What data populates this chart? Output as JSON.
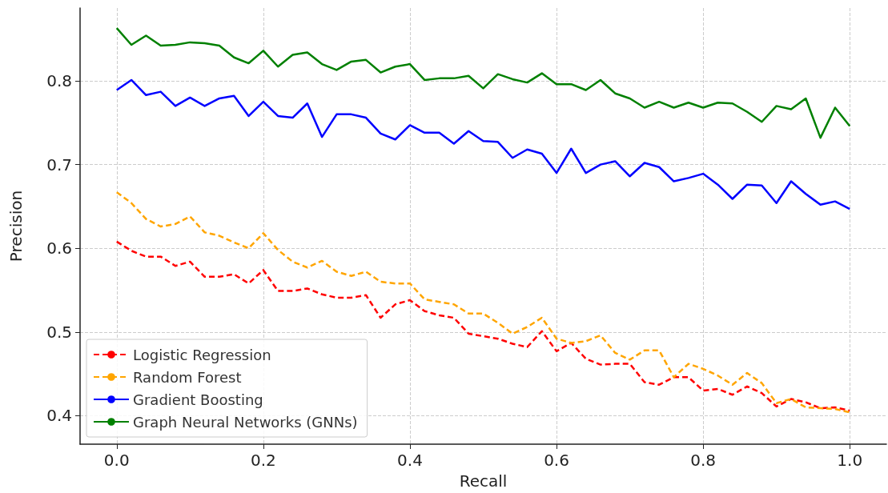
{
  "chart_data": {
    "type": "line",
    "xlabel": "Recall",
    "ylabel": "Precision",
    "x": [
      0,
      0.02,
      0.04,
      0.06,
      0.08,
      0.1,
      0.12,
      0.14,
      0.16,
      0.18,
      0.2,
      0.22,
      0.24,
      0.26,
      0.28,
      0.3,
      0.32,
      0.34,
      0.36,
      0.38,
      0.4,
      0.42,
      0.44,
      0.46,
      0.48,
      0.5,
      0.52,
      0.54,
      0.56,
      0.58,
      0.6,
      0.62,
      0.64,
      0.66,
      0.68,
      0.7,
      0.72,
      0.74,
      0.76,
      0.78,
      0.8,
      0.82,
      0.84,
      0.86,
      0.88,
      0.9,
      0.92,
      0.94,
      0.96,
      0.98,
      1.0
    ],
    "series": [
      {
        "name": "Logistic Regression",
        "color": "#ff0000",
        "line_style": "dashed",
        "values": [
          0.608,
          0.597,
          0.59,
          0.59,
          0.579,
          0.584,
          0.566,
          0.566,
          0.569,
          0.558,
          0.574,
          0.549,
          0.549,
          0.552,
          0.545,
          0.541,
          0.541,
          0.544,
          0.517,
          0.533,
          0.538,
          0.525,
          0.52,
          0.517,
          0.498,
          0.495,
          0.492,
          0.486,
          0.482,
          0.501,
          0.477,
          0.487,
          0.468,
          0.461,
          0.462,
          0.462,
          0.44,
          0.437,
          0.446,
          0.446,
          0.43,
          0.432,
          0.425,
          0.435,
          0.427,
          0.411,
          0.42,
          0.416,
          0.409,
          0.41,
          0.406
        ]
      },
      {
        "name": "Random Forest",
        "color": "#ffa500",
        "line_style": "dashed",
        "values": [
          0.667,
          0.654,
          0.635,
          0.626,
          0.629,
          0.638,
          0.619,
          0.615,
          0.607,
          0.6,
          0.618,
          0.598,
          0.584,
          0.577,
          0.585,
          0.572,
          0.567,
          0.572,
          0.56,
          0.558,
          0.558,
          0.539,
          0.536,
          0.533,
          0.522,
          0.522,
          0.511,
          0.498,
          0.506,
          0.517,
          0.492,
          0.487,
          0.489,
          0.496,
          0.475,
          0.467,
          0.478,
          0.478,
          0.446,
          0.462,
          0.456,
          0.448,
          0.437,
          0.451,
          0.439,
          0.415,
          0.42,
          0.41,
          0.409,
          0.408,
          0.404
        ]
      },
      {
        "name": "Gradient Boosting",
        "color": "#0000ff",
        "line_style": "solid",
        "values": [
          0.789,
          0.801,
          0.783,
          0.787,
          0.77,
          0.78,
          0.77,
          0.779,
          0.782,
          0.758,
          0.775,
          0.758,
          0.756,
          0.773,
          0.733,
          0.76,
          0.76,
          0.756,
          0.737,
          0.73,
          0.747,
          0.738,
          0.738,
          0.725,
          0.74,
          0.728,
          0.727,
          0.708,
          0.718,
          0.713,
          0.69,
          0.719,
          0.69,
          0.7,
          0.704,
          0.686,
          0.702,
          0.697,
          0.68,
          0.684,
          0.689,
          0.676,
          0.659,
          0.676,
          0.675,
          0.654,
          0.68,
          0.665,
          0.652,
          0.656,
          0.647
        ]
      },
      {
        "name": "Graph Neural Networks (GNNs)",
        "color": "#008000",
        "line_style": "solid",
        "values": [
          0.863,
          0.843,
          0.854,
          0.842,
          0.843,
          0.846,
          0.845,
          0.842,
          0.828,
          0.821,
          0.836,
          0.817,
          0.831,
          0.834,
          0.82,
          0.813,
          0.823,
          0.825,
          0.81,
          0.817,
          0.82,
          0.801,
          0.803,
          0.803,
          0.806,
          0.791,
          0.808,
          0.802,
          0.798,
          0.809,
          0.796,
          0.796,
          0.789,
          0.801,
          0.785,
          0.779,
          0.768,
          0.775,
          0.768,
          0.774,
          0.768,
          0.774,
          0.773,
          0.763,
          0.751,
          0.77,
          0.766,
          0.779,
          0.732,
          0.768,
          0.746
        ]
      }
    ],
    "xlim": [
      -0.05,
      1.05
    ],
    "xticks": [
      {
        "value": 0,
        "label": "0.0"
      },
      0.2,
      0.4,
      0.6,
      0.8,
      {
        "value": 1,
        "label": "1.0"
      }
    ],
    "ylim": [
      0.366,
      0.887
    ],
    "yticks": [
      0.4,
      0.5,
      0.6,
      0.7,
      0.8
    ],
    "grid": true,
    "legend": "bottom left",
    "marker": "none"
  }
}
